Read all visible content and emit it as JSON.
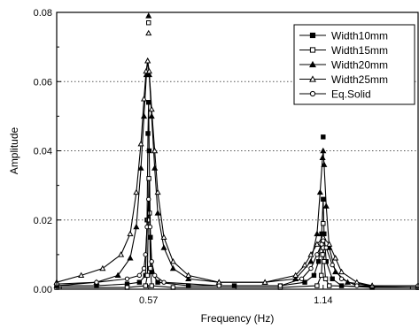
{
  "chart_data": {
    "type": "line",
    "title": "",
    "xlabel": "Frequency (Hz)",
    "ylabel": "Amplitude",
    "xlim": [
      0.27,
      1.45
    ],
    "ylim": [
      0,
      0.08
    ],
    "x_ticks": [
      0.57,
      1.14
    ],
    "x_tick_labels": [
      "0.57",
      "1.14"
    ],
    "y_ticks": [
      0,
      0.02,
      0.04,
      0.06,
      0.08
    ],
    "y_tick_labels": [
      "0.00",
      "0.02",
      "0.04",
      "0.06",
      "0.08"
    ],
    "grid": "horizontal-dotted",
    "legend_position": "top-right",
    "series": [
      {
        "name": "Width10mm",
        "marker": "filled-square",
        "points": [
          [
            0.27,
            0.001
          ],
          [
            0.4,
            0.001
          ],
          [
            0.5,
            0.0015
          ],
          [
            0.54,
            0.002
          ],
          [
            0.56,
            0.004
          ],
          [
            0.565,
            0.02
          ],
          [
            0.568,
            0.045
          ],
          [
            0.57,
            0.054
          ],
          [
            0.572,
            0.04
          ],
          [
            0.576,
            0.015
          ],
          [
            0.58,
            0.005
          ],
          [
            0.6,
            0.002
          ],
          [
            0.7,
            0.001
          ],
          [
            0.85,
            0.001
          ],
          [
            1.0,
            0.001
          ],
          [
            1.08,
            0.002
          ],
          [
            1.11,
            0.004
          ],
          [
            1.125,
            0.008
          ],
          [
            1.135,
            0.016
          ],
          [
            1.14,
            0.026
          ],
          [
            1.143,
            0.016
          ],
          [
            1.15,
            0.008
          ],
          [
            1.17,
            0.003
          ],
          [
            1.2,
            0.001
          ],
          [
            1.3,
            0.0005
          ],
          [
            1.45,
            0.0005
          ]
        ],
        "outlier_points": [
          [
            1.14,
            0.044
          ]
        ]
      },
      {
        "name": "Width15mm",
        "marker": "open-square",
        "points": [
          [
            0.27,
            0.0005
          ],
          [
            0.5,
            0.0005
          ],
          [
            0.56,
            0.001
          ],
          [
            0.566,
            0.004
          ],
          [
            0.569,
            0.02
          ],
          [
            0.571,
            0.032
          ],
          [
            0.573,
            0.022
          ],
          [
            0.576,
            0.006
          ],
          [
            0.58,
            0.001
          ],
          [
            0.65,
            0.0005
          ],
          [
            1.0,
            0.0005
          ],
          [
            1.12,
            0.001
          ],
          [
            1.134,
            0.004
          ],
          [
            1.138,
            0.01
          ],
          [
            1.14,
            0.012
          ],
          [
            1.143,
            0.008
          ],
          [
            1.148,
            0.003
          ],
          [
            1.16,
            0.001
          ],
          [
            1.45,
            0.0005
          ]
        ],
        "outlier_points": [
          [
            0.57,
            0.077
          ],
          [
            1.14,
            0.019
          ]
        ]
      },
      {
        "name": "Width20mm",
        "marker": "filled-triangle",
        "points": [
          [
            0.27,
            0.001
          ],
          [
            0.4,
            0.002
          ],
          [
            0.47,
            0.004
          ],
          [
            0.51,
            0.009
          ],
          [
            0.53,
            0.018
          ],
          [
            0.545,
            0.035
          ],
          [
            0.555,
            0.05
          ],
          [
            0.563,
            0.062
          ],
          [
            0.567,
            0.066
          ],
          [
            0.572,
            0.062
          ],
          [
            0.58,
            0.05
          ],
          [
            0.59,
            0.035
          ],
          [
            0.6,
            0.022
          ],
          [
            0.62,
            0.012
          ],
          [
            0.65,
            0.006
          ],
          [
            0.7,
            0.003
          ],
          [
            0.8,
            0.002
          ],
          [
            0.95,
            0.002
          ],
          [
            1.05,
            0.003
          ],
          [
            1.1,
            0.008
          ],
          [
            1.12,
            0.016
          ],
          [
            1.13,
            0.028
          ],
          [
            1.138,
            0.038
          ],
          [
            1.14,
            0.04
          ],
          [
            1.143,
            0.036
          ],
          [
            1.15,
            0.024
          ],
          [
            1.16,
            0.012
          ],
          [
            1.18,
            0.005
          ],
          [
            1.22,
            0.002
          ],
          [
            1.3,
            0.001
          ],
          [
            1.45,
            0.001
          ]
        ],
        "outlier_points": [
          [
            0.57,
            0.079
          ]
        ]
      },
      {
        "name": "Width25mm",
        "marker": "open-triangle",
        "points": [
          [
            0.27,
            0.002
          ],
          [
            0.35,
            0.004
          ],
          [
            0.42,
            0.006
          ],
          [
            0.48,
            0.01
          ],
          [
            0.51,
            0.016
          ],
          [
            0.53,
            0.028
          ],
          [
            0.545,
            0.042
          ],
          [
            0.555,
            0.055
          ],
          [
            0.562,
            0.063
          ],
          [
            0.567,
            0.066
          ],
          [
            0.572,
            0.063
          ],
          [
            0.58,
            0.052
          ],
          [
            0.59,
            0.04
          ],
          [
            0.6,
            0.028
          ],
          [
            0.62,
            0.015
          ],
          [
            0.65,
            0.008
          ],
          [
            0.7,
            0.004
          ],
          [
            0.8,
            0.002
          ],
          [
            0.95,
            0.002
          ],
          [
            1.05,
            0.004
          ],
          [
            1.08,
            0.007
          ],
          [
            1.1,
            0.01
          ],
          [
            1.12,
            0.013
          ],
          [
            1.14,
            0.015
          ],
          [
            1.16,
            0.013
          ],
          [
            1.18,
            0.009
          ],
          [
            1.2,
            0.005
          ],
          [
            1.25,
            0.002
          ],
          [
            1.3,
            0.001
          ],
          [
            1.45,
            0.001
          ]
        ],
        "outlier_points": [
          [
            0.57,
            0.074
          ]
        ]
      },
      {
        "name": "Eq.Solid",
        "marker": "open-circle",
        "points": [
          [
            0.27,
            0.0015
          ],
          [
            0.4,
            0.002
          ],
          [
            0.5,
            0.003
          ],
          [
            0.54,
            0.004
          ],
          [
            0.555,
            0.006
          ],
          [
            0.56,
            0.01
          ],
          [
            0.565,
            0.018
          ],
          [
            0.57,
            0.026
          ],
          [
            0.575,
            0.018
          ],
          [
            0.58,
            0.008
          ],
          [
            0.59,
            0.004
          ],
          [
            0.62,
            0.002
          ],
          [
            0.8,
            0.001
          ],
          [
            1.0,
            0.001
          ],
          [
            1.07,
            0.003
          ],
          [
            1.1,
            0.006
          ],
          [
            1.12,
            0.01
          ],
          [
            1.135,
            0.013
          ],
          [
            1.14,
            0.014
          ],
          [
            1.15,
            0.012
          ],
          [
            1.17,
            0.007
          ],
          [
            1.2,
            0.003
          ],
          [
            1.25,
            0.001
          ],
          [
            1.45,
            0.001
          ]
        ]
      }
    ]
  }
}
